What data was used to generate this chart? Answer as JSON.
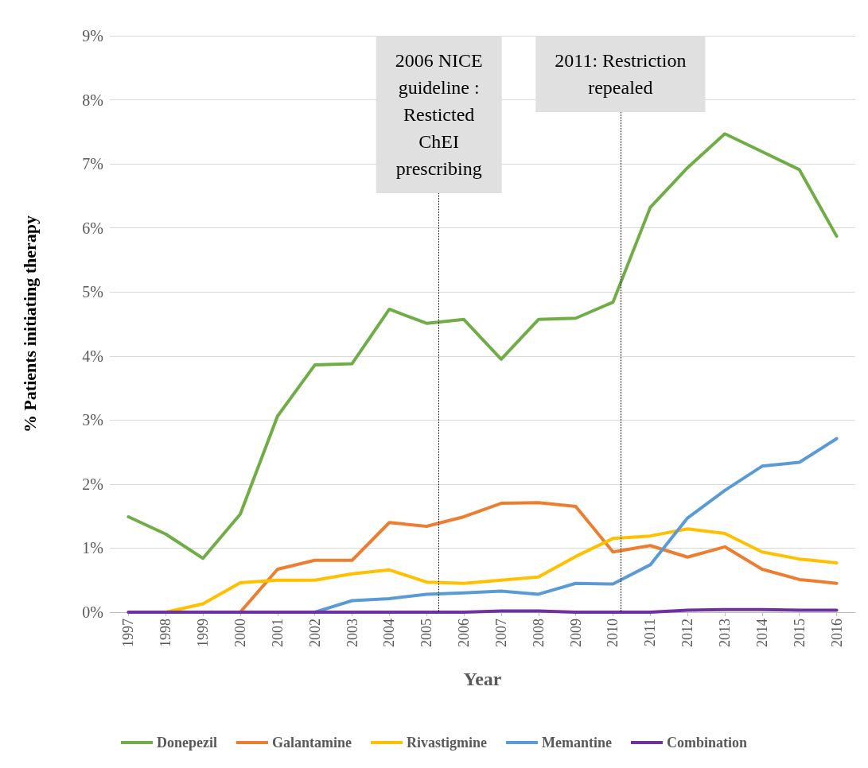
{
  "chart_data": {
    "type": "line",
    "xlabel": "Year",
    "ylabel": "% Patients initiating therapy",
    "x": [
      1997,
      1998,
      1999,
      2000,
      2001,
      2002,
      2003,
      2004,
      2005,
      2006,
      2007,
      2008,
      2009,
      2010,
      2011,
      2012,
      2013,
      2014,
      2015,
      2016
    ],
    "xlim": [
      1996.5,
      2016.5
    ],
    "xticks": [
      1997,
      1998,
      1999,
      2000,
      2001,
      2002,
      2003,
      2004,
      2005,
      2006,
      2007,
      2008,
      2009,
      2010,
      2011,
      2012,
      2013,
      2014,
      2015,
      2016
    ],
    "ylim": [
      0,
      9
    ],
    "yticks": [
      {
        "value": 0,
        "label": "0%"
      },
      {
        "value": 1,
        "label": "1%"
      },
      {
        "value": 2,
        "label": "2%"
      },
      {
        "value": 3,
        "label": "3%"
      },
      {
        "value": 4,
        "label": "4%"
      },
      {
        "value": 5,
        "label": "5%"
      },
      {
        "value": 6,
        "label": "6%"
      },
      {
        "value": 7,
        "label": "7%"
      },
      {
        "value": 8,
        "label": "8%"
      },
      {
        "value": 9,
        "label": "9%"
      }
    ],
    "series": [
      {
        "name": "Donepezil",
        "color": "#70ad47",
        "values": [
          1.49,
          1.22,
          0.84,
          1.53,
          3.06,
          3.86,
          3.88,
          4.73,
          4.51,
          4.57,
          3.95,
          4.57,
          4.59,
          4.84,
          6.32,
          6.94,
          7.47,
          7.19,
          6.91,
          5.87
        ]
      },
      {
        "name": "Galantamine",
        "color": "#ed7d31",
        "values": [
          null,
          null,
          null,
          0,
          0.67,
          0.81,
          0.81,
          1.4,
          1.34,
          1.49,
          1.7,
          1.71,
          1.65,
          0.94,
          1.04,
          0.86,
          1.02,
          0.67,
          0.51,
          0.45
        ]
      },
      {
        "name": "Rivastigmine",
        "color": "#ffc000",
        "values": [
          0,
          0,
          0.13,
          0.46,
          0.5,
          0.5,
          0.6,
          0.66,
          0.47,
          0.45,
          0.5,
          0.55,
          0.87,
          1.15,
          1.19,
          1.3,
          1.23,
          0.94,
          0.83,
          0.77
        ]
      },
      {
        "name": "Memantine",
        "color": "#5b9bd5",
        "values": [
          null,
          null,
          null,
          null,
          null,
          0,
          0.18,
          0.21,
          0.28,
          0.3,
          0.33,
          0.28,
          0.45,
          0.44,
          0.74,
          1.47,
          1.9,
          2.28,
          2.34,
          2.71
        ]
      },
      {
        "name": "Combination",
        "color": "#7030a0",
        "values": [
          0,
          0,
          0,
          0,
          0,
          0,
          0,
          0,
          0,
          0,
          0.02,
          0.02,
          0,
          0,
          0,
          0.03,
          0.04,
          0.04,
          0.03,
          0.03
        ]
      }
    ],
    "ref_lines": [
      {
        "axis": "x",
        "value": 2005.33,
        "label": "2006 NICE\nguideline :\nResticted\nChEI\nprescribing",
        "line_style": "dotted",
        "color": "#000000"
      },
      {
        "axis": "x",
        "value": 2010.2,
        "label": "2011: Restriction\nrepealed",
        "line_style": "dotted",
        "color": "#000000"
      }
    ],
    "grid": "y",
    "legend": "bottom",
    "marker": "none",
    "line_style": "solid"
  }
}
